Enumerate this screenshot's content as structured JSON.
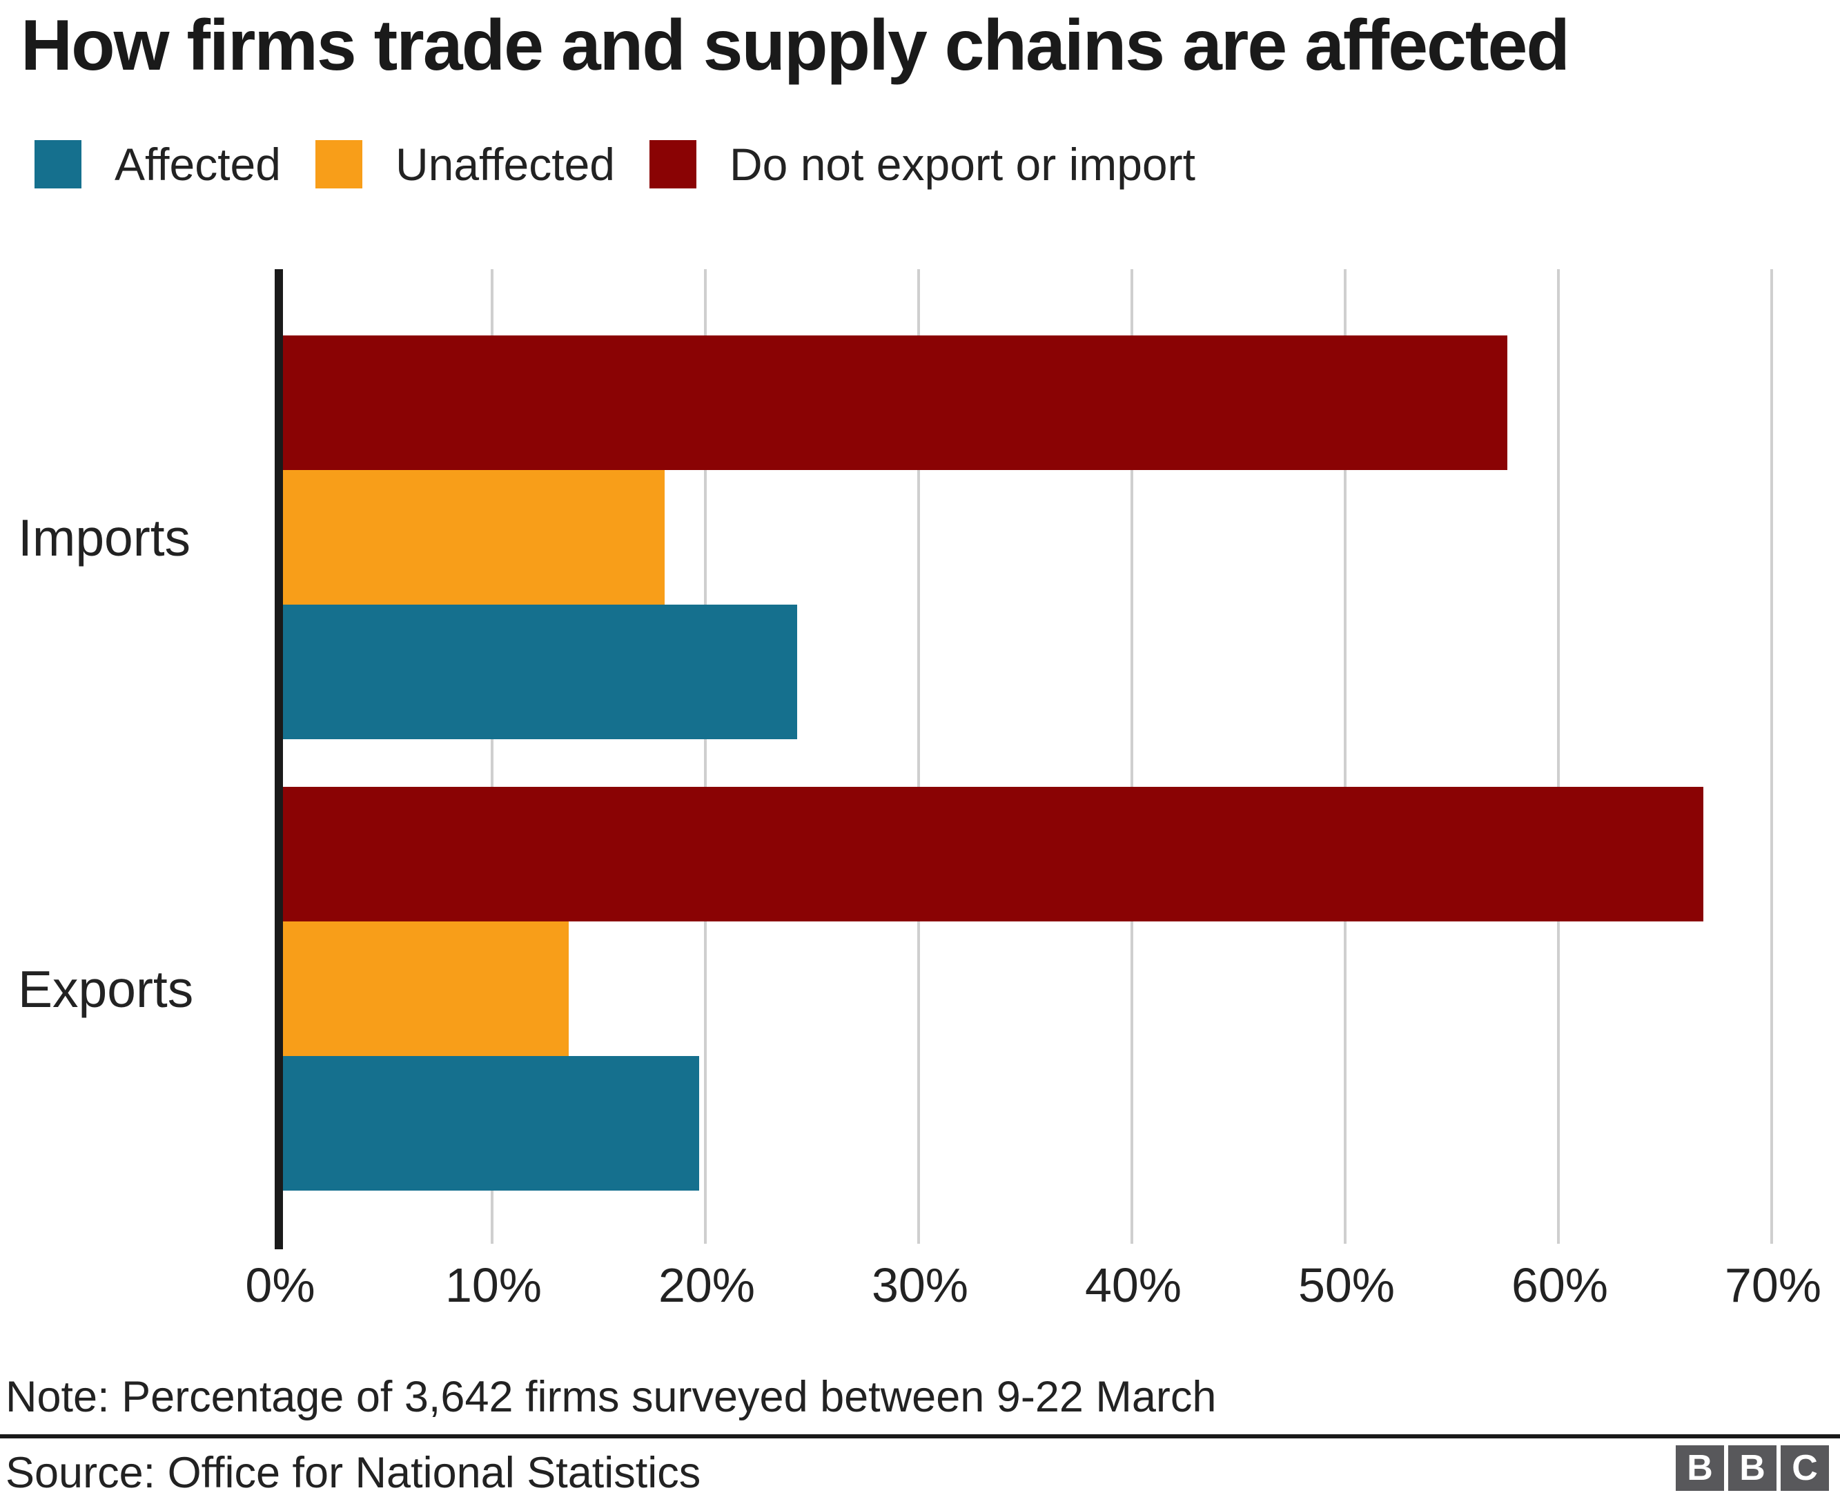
{
  "title": "How firms trade and supply chains are affected",
  "note": "Note: Percentage of 3,642 firms surveyed between 9-22 March",
  "source": "Source: Office for National Statistics",
  "logo": {
    "letters": [
      "B",
      "B",
      "C"
    ]
  },
  "colors": {
    "affected": "#15708E",
    "unaffected": "#F89E19",
    "do_not_trade": "#8A0304",
    "axis": "#1a1a1a",
    "gridline": "#cfcfcf",
    "text": "#222222",
    "logo_bg": "#58585B"
  },
  "chart_data": {
    "type": "bar",
    "orientation": "horizontal",
    "title": "How firms trade and supply chains are affected",
    "categories": [
      "Imports",
      "Exports"
    ],
    "series": [
      {
        "name": "Affected",
        "color": "#15708E",
        "values": [
          24.3,
          19.7
        ]
      },
      {
        "name": "Unaffected",
        "color": "#F89E19",
        "values": [
          18.1,
          13.6
        ]
      },
      {
        "name": "Do not export or import",
        "color": "#8A0304",
        "values": [
          57.6,
          66.8
        ]
      }
    ],
    "xlabel": "",
    "ylabel": "",
    "xlim": [
      0,
      70
    ],
    "xticks": [
      "0%",
      "10%",
      "20%",
      "30%",
      "40%",
      "50%",
      "60%",
      "70%"
    ],
    "grid": "vertical",
    "legend_position": "top-left",
    "bar_draw_order": [
      "Do not export or import",
      "Unaffected",
      "Affected"
    ]
  }
}
